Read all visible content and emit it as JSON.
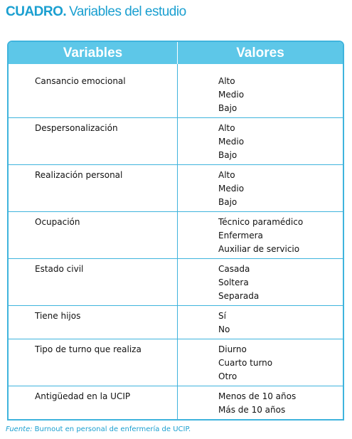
{
  "title": {
    "label": "CUADRO.",
    "text": "Variables del estudio"
  },
  "table": {
    "headers": [
      "Variables",
      "Valores"
    ],
    "rows": [
      {
        "variable": "Cansancio emocional",
        "values": [
          "Alto",
          "Medio",
          "Bajo"
        ]
      },
      {
        "variable": "Despersonalización",
        "values": [
          "Alto",
          "Medio",
          "Bajo"
        ]
      },
      {
        "variable": "Realización personal",
        "values": [
          "Alto",
          "Medio",
          "Bajo"
        ]
      },
      {
        "variable": "Ocupación",
        "values": [
          "Técnico paramédico",
          "Enfermera",
          "Auxiliar de servicio"
        ]
      },
      {
        "variable": "Estado civil",
        "values": [
          "Casada",
          "Soltera",
          "Separada"
        ]
      },
      {
        "variable": "Tiene hijos",
        "values": [
          "Sí",
          "No"
        ]
      },
      {
        "variable": "Tipo de turno que realiza",
        "values": [
          "Diurno",
          "Cuarto turno",
          "Otro"
        ]
      },
      {
        "variable": "Antigüedad en la UCIP",
        "values": [
          "Menos de 10 años",
          "Más de 10 años"
        ]
      }
    ]
  },
  "footnote": {
    "label": "Fuente:",
    "text": "Burnout en personal de enfermería de UCIP."
  }
}
